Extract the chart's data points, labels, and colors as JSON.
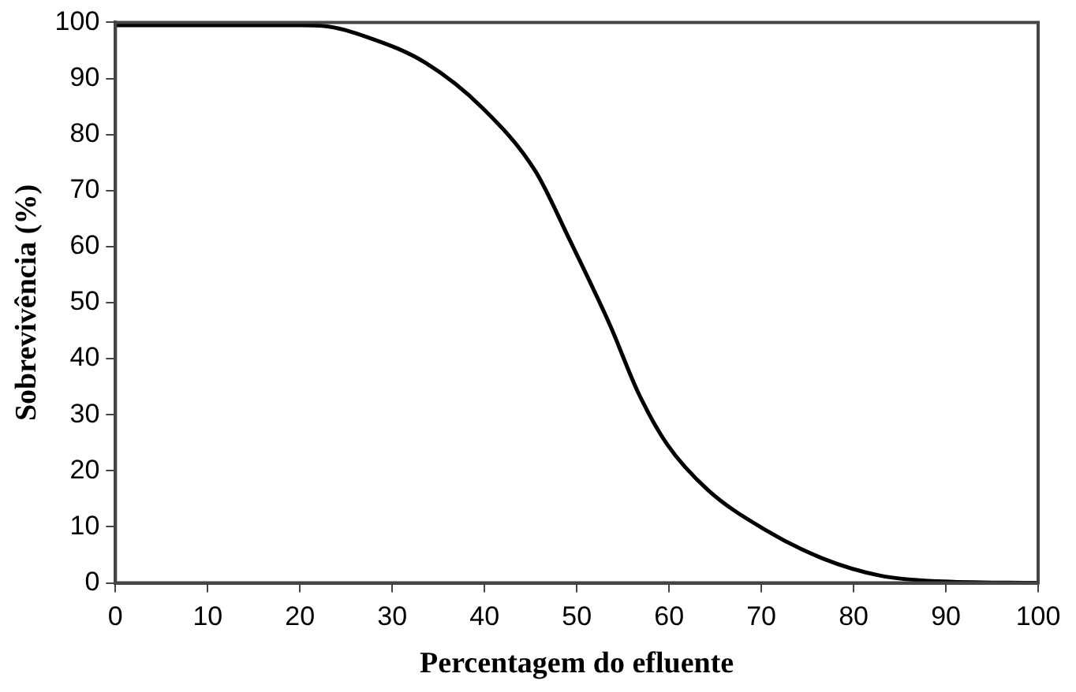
{
  "chart_data": {
    "type": "line",
    "xlabel": "Percentagem do efluente",
    "ylabel": "Sobrevivência (%)",
    "x": [
      0,
      10,
      20,
      22.4,
      27.4,
      33.6,
      39.8,
      45.5,
      49.2,
      53.6,
      56.7,
      59.8,
      64.2,
      70.4,
      76.6,
      82.9,
      89.1,
      100
    ],
    "series": [
      {
        "color": "#000000",
        "values": [
          99.5,
          99.5,
          99.5,
          99.4,
          97.3,
          92.8,
          84.7,
          73.5,
          61.3,
          46,
          33.8,
          24.7,
          16.6,
          9.5,
          4.4,
          1.3,
          0.3,
          0
        ]
      }
    ],
    "xlim": [
      0,
      100
    ],
    "xticks": [
      0,
      10,
      20,
      30,
      40,
      50,
      60,
      70,
      80,
      90,
      100
    ],
    "ylim": [
      0,
      100
    ],
    "yticks": [
      0,
      10,
      20,
      30,
      40,
      50,
      60,
      70,
      80,
      90,
      100
    ],
    "grid": false,
    "legend": false,
    "marker": "none",
    "line_style": "solid"
  }
}
